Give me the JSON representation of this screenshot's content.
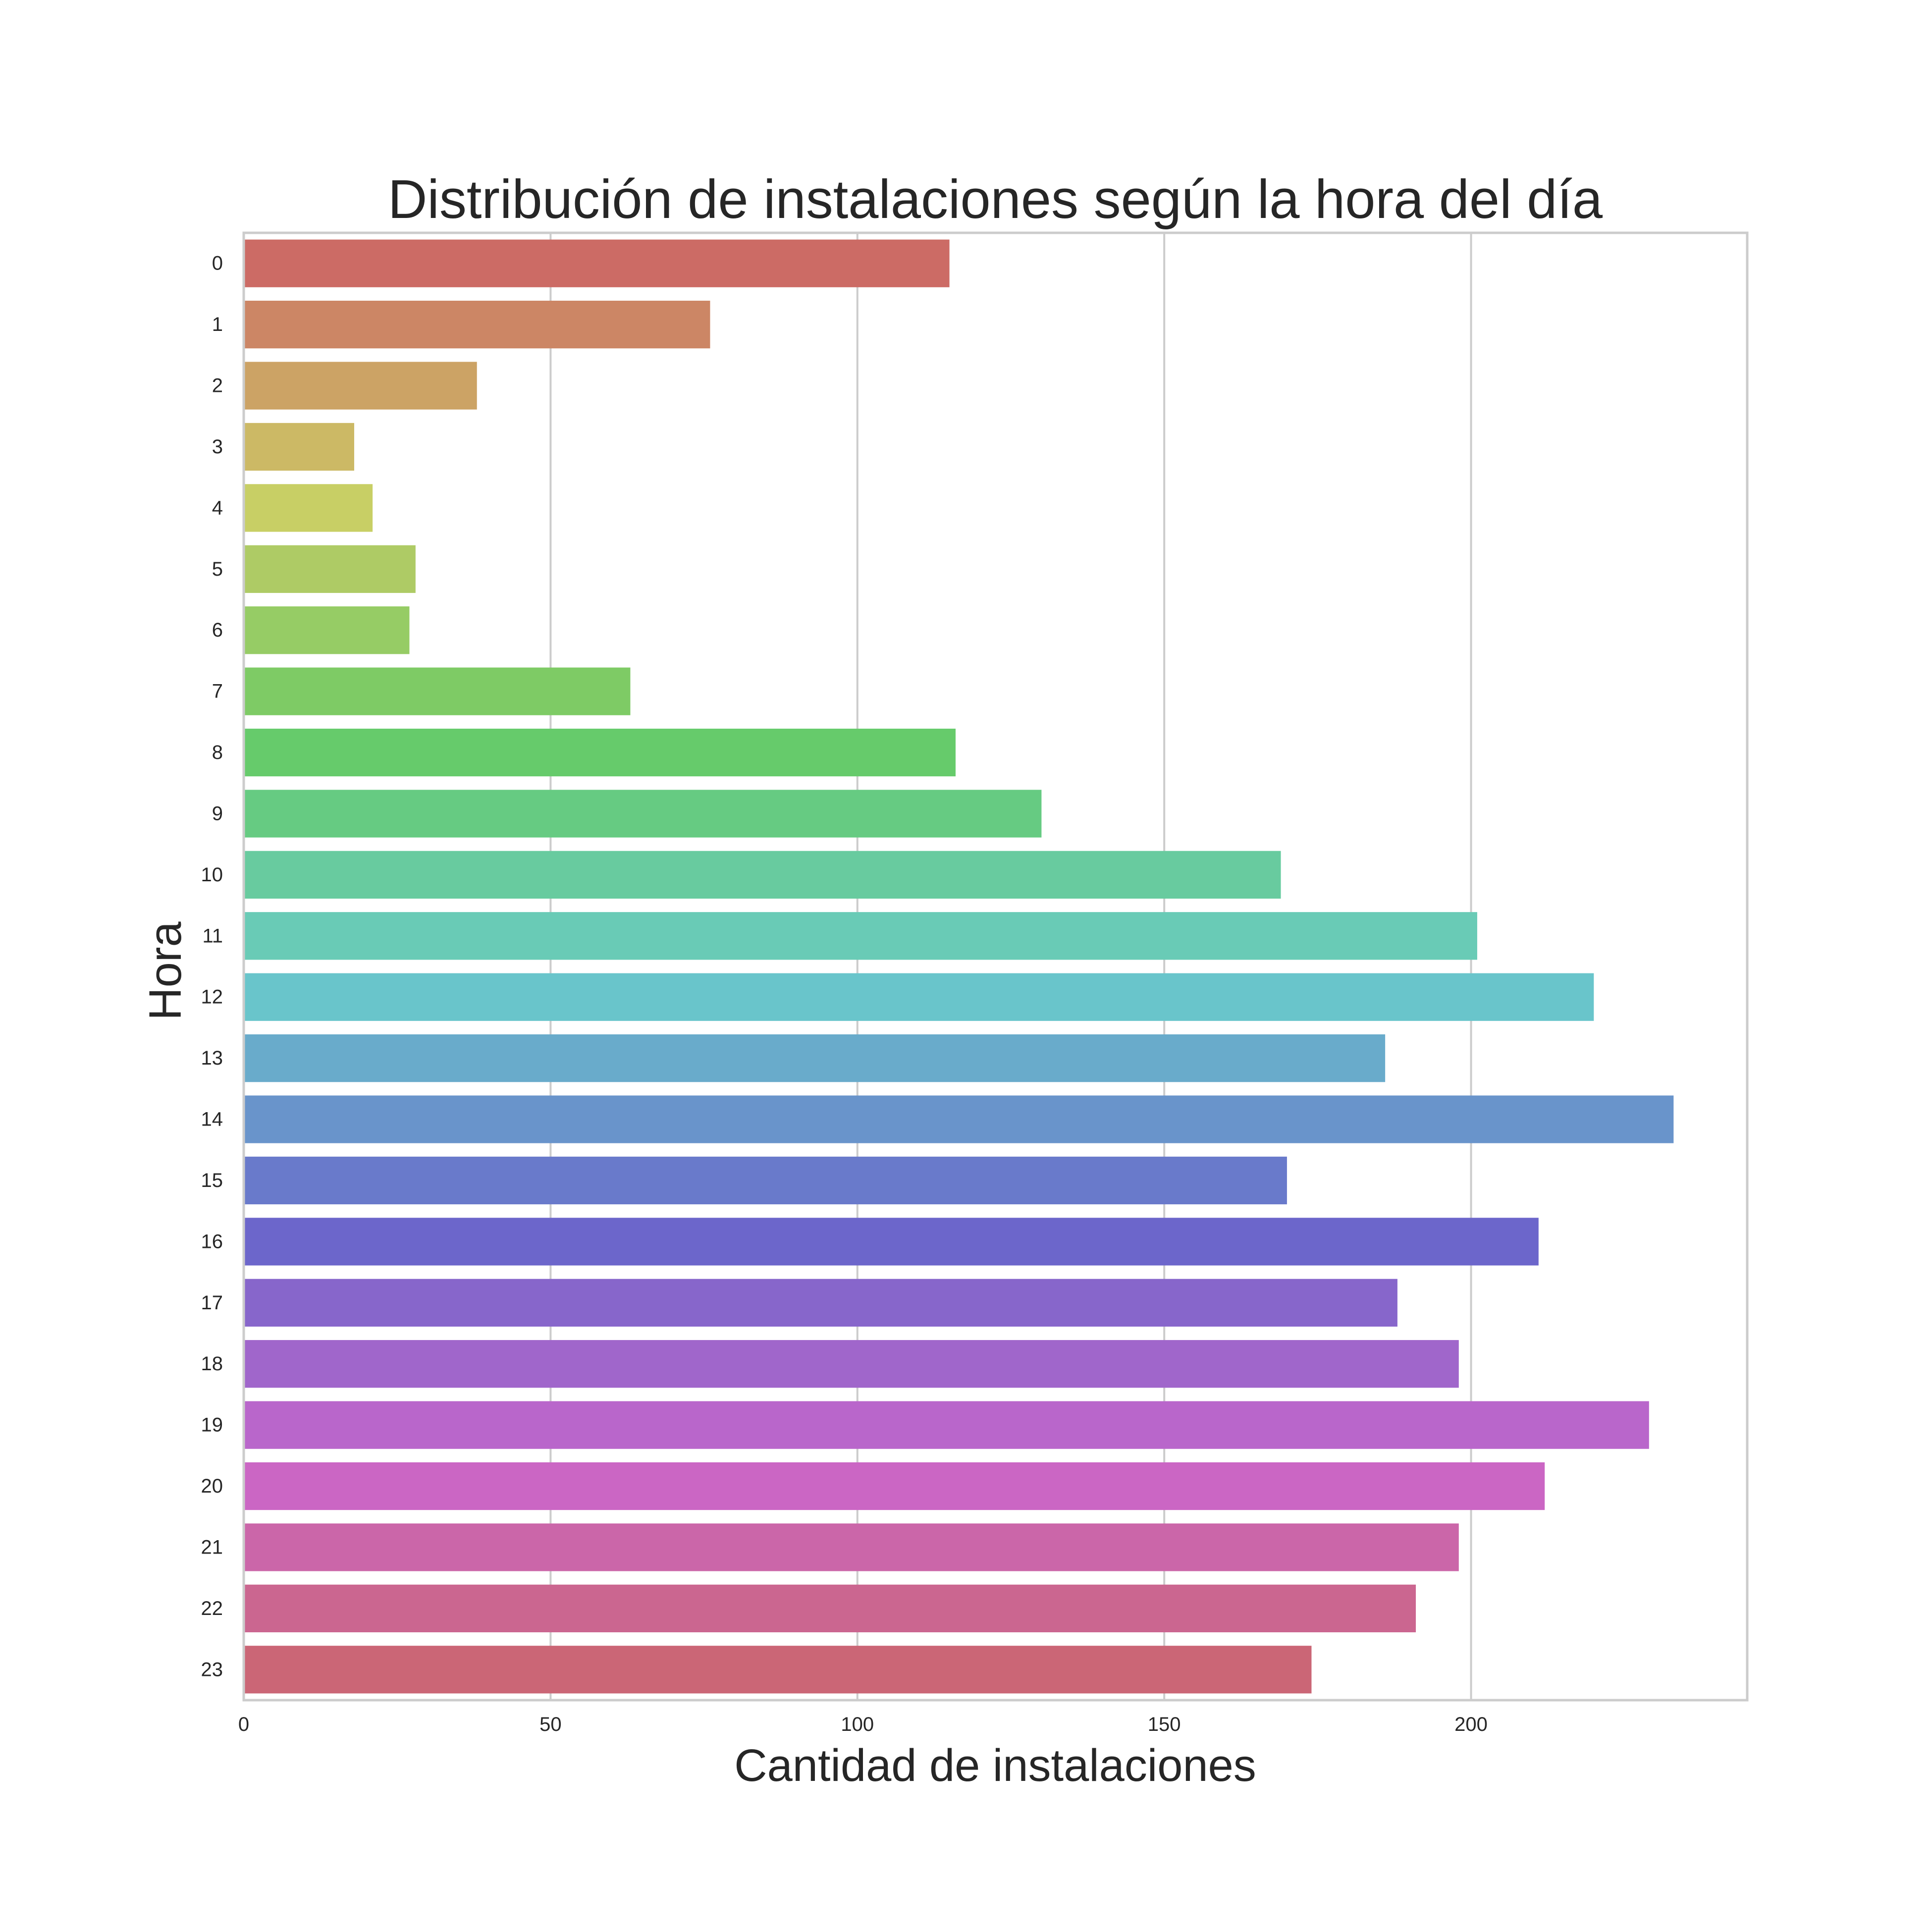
{
  "chart_data": {
    "type": "bar",
    "orientation": "horizontal",
    "title": "Distribución de instalaciones según la hora del día",
    "xlabel": "Cantidad de instalaciones",
    "ylabel": "Hora",
    "categories": [
      "0",
      "1",
      "2",
      "3",
      "4",
      "5",
      "6",
      "7",
      "8",
      "9",
      "10",
      "11",
      "12",
      "13",
      "14",
      "15",
      "16",
      "17",
      "18",
      "19",
      "20",
      "21",
      "22",
      "23"
    ],
    "values": [
      115,
      76,
      38,
      18,
      21,
      28,
      27,
      63,
      116,
      130,
      169,
      201,
      220,
      186,
      233,
      170,
      211,
      188,
      198,
      229,
      212,
      198,
      191,
      174
    ],
    "xlim": [
      0,
      245
    ],
    "xticks": [
      0,
      50,
      100,
      150,
      200
    ],
    "grid": true,
    "legend": "none",
    "colors": [
      "#cc6b65",
      "#cc8665",
      "#cca365",
      "#ccb965",
      "#c8cf65",
      "#aecb65",
      "#96cc65",
      "#7ecb65",
      "#66cb6b",
      "#66cb82",
      "#68cb9f",
      "#69cbb6",
      "#69c5cb",
      "#69abcb",
      "#6994cb",
      "#697acb",
      "#6c66cb",
      "#8766cb",
      "#a066cb",
      "#b966cb",
      "#cb66c4",
      "#cb66a9",
      "#cb6690",
      "#cb6676"
    ]
  }
}
